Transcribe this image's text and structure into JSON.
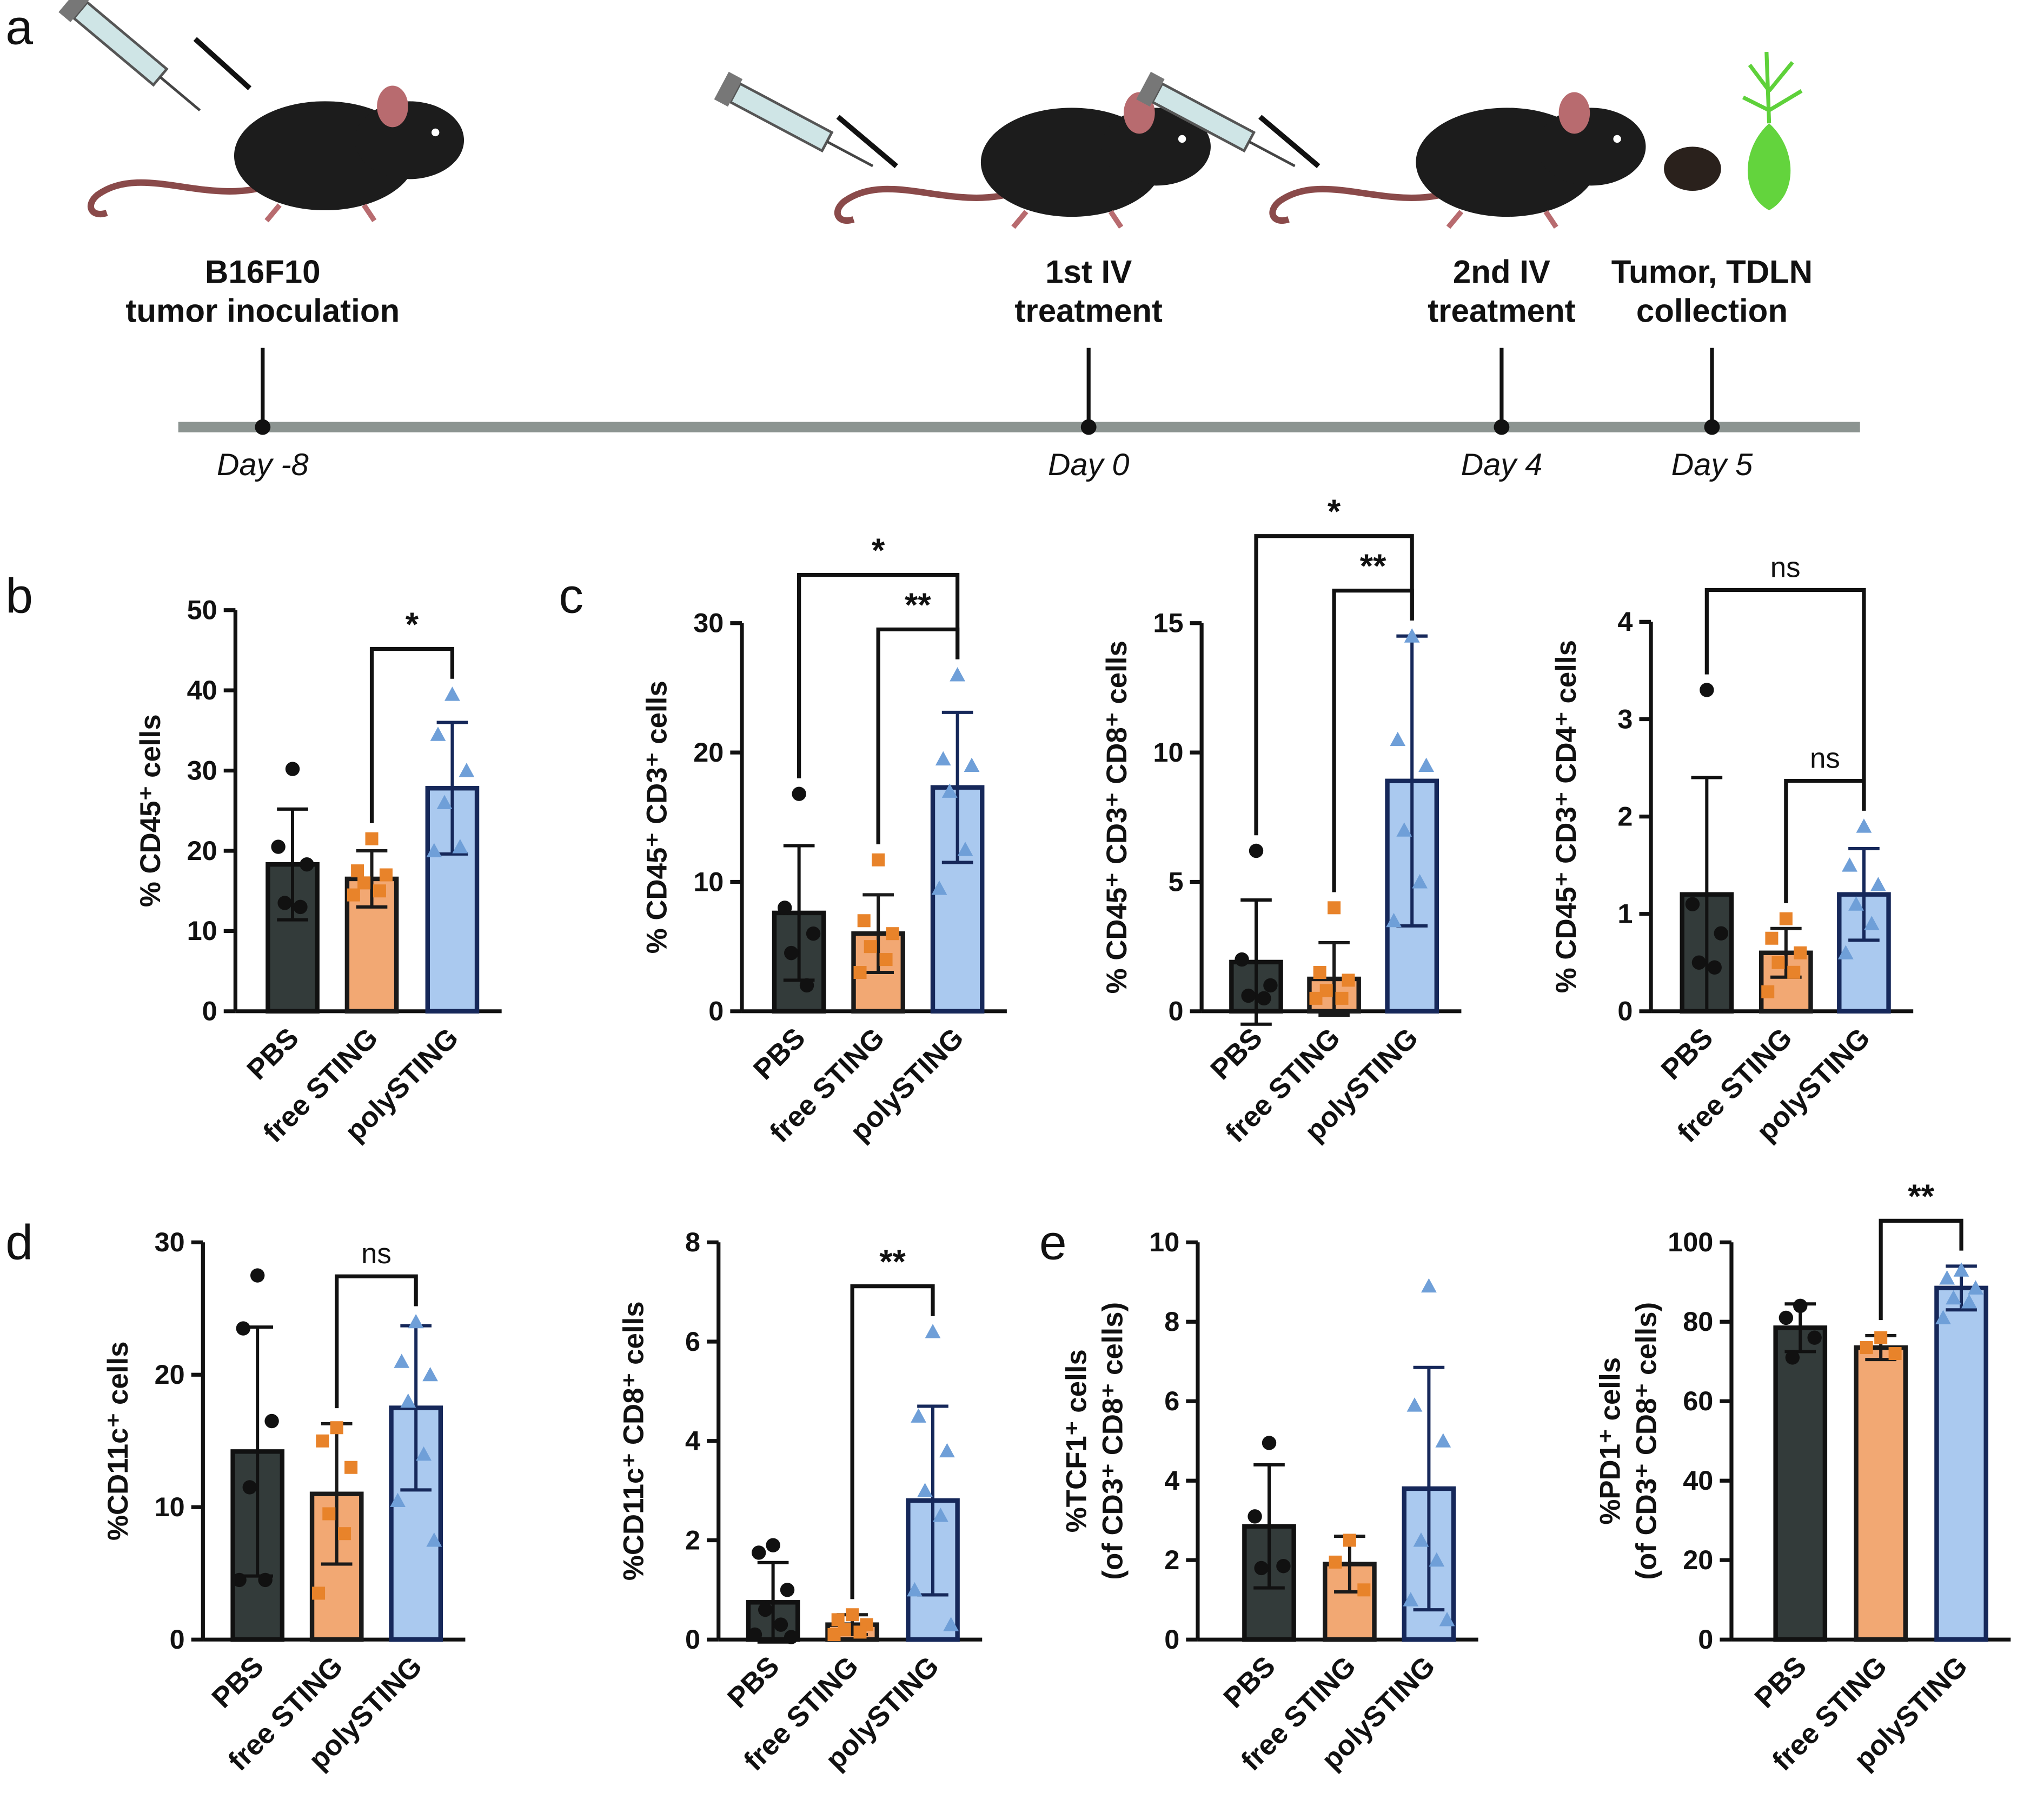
{
  "panel_labels": [
    "a",
    "b",
    "c",
    "d",
    "e"
  ],
  "timeline": {
    "events": [
      {
        "label": [
          "B16F10",
          "tumor inoculation"
        ],
        "day": "Day -8"
      },
      {
        "label": [
          "1st IV",
          "treatment"
        ],
        "day": "Day 0"
      },
      {
        "label": [
          "2nd IV",
          "treatment"
        ],
        "day": "Day 4"
      },
      {
        "label": [
          "Tumor, TDLN",
          "collection"
        ],
        "day": "Day 5"
      }
    ]
  },
  "chart_data": [
    {
      "type": "bar",
      "ylabel": [
        "% CD45⁺ cells"
      ],
      "categories": [
        "PBS",
        "free STING",
        "polySTING"
      ],
      "values": [
        18.3,
        16.5,
        27.8
      ],
      "errors": [
        6.9,
        3.5,
        8.2
      ],
      "points": [
        [
          30.2,
          20.5,
          18.3,
          13.5,
          13.0
        ],
        [
          21.5,
          17.5,
          17,
          16,
          15,
          14.5
        ],
        [
          39.5,
          34.5,
          30,
          26,
          20.5,
          20
        ]
      ],
      "colors": [
        "#333b3a",
        "#f2a873",
        "#aac9ef"
      ],
      "edge_colors": [
        "#111111",
        "#1a1a1a",
        "#16285a"
      ],
      "point_colors": [
        "#111111",
        "#e8832a",
        "#6f9fd8"
      ],
      "markers": [
        "circle",
        "square",
        "triangle"
      ],
      "ylim": [
        0,
        50
      ],
      "yticks": [
        0,
        10,
        20,
        30,
        40,
        50
      ],
      "brackets": [
        {
          "groups": [
            "free STING",
            "polySTING"
          ],
          "label": "*"
        }
      ]
    },
    {
      "type": "bar",
      "ylabel": [
        "% CD45⁺ CD3⁺ cells"
      ],
      "categories": [
        "PBS",
        "free STING",
        "polySTING"
      ],
      "values": [
        7.6,
        6.0,
        17.3
      ],
      "errors": [
        5.2,
        3.0,
        5.8
      ],
      "points": [
        [
          16.8,
          8,
          6,
          4.5,
          2
        ],
        [
          11.7,
          7,
          6,
          5,
          4,
          3
        ],
        [
          26,
          19.5,
          19,
          17,
          12.5,
          9.5
        ]
      ],
      "colors": [
        "#333b3a",
        "#f2a873",
        "#aac9ef"
      ],
      "edge_colors": [
        "#111111",
        "#1a1a1a",
        "#16285a"
      ],
      "point_colors": [
        "#111111",
        "#e8832a",
        "#6f9fd8"
      ],
      "markers": [
        "circle",
        "square",
        "triangle"
      ],
      "ylim": [
        0,
        30
      ],
      "yticks": [
        0,
        10,
        20,
        30
      ],
      "brackets": [
        {
          "groups": [
            "free STING",
            "polySTING"
          ],
          "label": "**"
        },
        {
          "groups": [
            "PBS",
            "polySTING"
          ],
          "label": "*"
        }
      ]
    },
    {
      "type": "bar",
      "ylabel": [
        "% CD45⁺ CD3⁺ CD8⁺ cells"
      ],
      "categories": [
        "PBS",
        "free STING",
        "polySTING"
      ],
      "values": [
        1.9,
        1.25,
        8.9
      ],
      "errors": [
        2.4,
        1.4,
        5.6
      ],
      "points": [
        [
          6.2,
          2,
          1,
          0.6,
          0.5
        ],
        [
          4,
          1.5,
          1.2,
          0.8,
          0.5,
          0.5
        ],
        [
          14.5,
          10.5,
          9.5,
          7,
          5,
          3.5
        ]
      ],
      "colors": [
        "#333b3a",
        "#f2a873",
        "#aac9ef"
      ],
      "edge_colors": [
        "#111111",
        "#1a1a1a",
        "#16285a"
      ],
      "point_colors": [
        "#111111",
        "#e8832a",
        "#6f9fd8"
      ],
      "markers": [
        "circle",
        "square",
        "triangle"
      ],
      "ylim": [
        0,
        15
      ],
      "yticks": [
        0,
        5,
        10,
        15
      ],
      "brackets": [
        {
          "groups": [
            "free STING",
            "polySTING"
          ],
          "label": "**"
        },
        {
          "groups": [
            "PBS",
            "polySTING"
          ],
          "label": "*"
        }
      ]
    },
    {
      "type": "bar",
      "ylabel": [
        "% CD45⁺ CD3⁺ CD4⁺ cells"
      ],
      "categories": [
        "PBS",
        "free STING",
        "polySTING"
      ],
      "values": [
        1.2,
        0.6,
        1.2
      ],
      "errors": [
        1.2,
        0.25,
        0.47
      ],
      "points": [
        [
          3.3,
          1.1,
          0.8,
          0.5,
          0.45
        ],
        [
          0.95,
          0.75,
          0.6,
          0.5,
          0.4,
          0.2
        ],
        [
          1.9,
          1.5,
          1.3,
          1.1,
          0.9,
          0.6
        ]
      ],
      "colors": [
        "#333b3a",
        "#f2a873",
        "#aac9ef"
      ],
      "edge_colors": [
        "#111111",
        "#1a1a1a",
        "#16285a"
      ],
      "point_colors": [
        "#111111",
        "#e8832a",
        "#6f9fd8"
      ],
      "markers": [
        "circle",
        "square",
        "triangle"
      ],
      "ylim": [
        0,
        4
      ],
      "yticks": [
        0,
        1,
        2,
        3,
        4
      ],
      "brackets": [
        {
          "groups": [
            "free STING",
            "polySTING"
          ],
          "label": "ns"
        },
        {
          "groups": [
            "PBS",
            "polySTING"
          ],
          "label": "ns"
        }
      ]
    },
    {
      "type": "bar",
      "ylabel": [
        "%CD11c⁺ cells"
      ],
      "categories": [
        "PBS",
        "free STING",
        "polySTING"
      ],
      "values": [
        14.2,
        11.0,
        17.5
      ],
      "errors": [
        9.4,
        5.3,
        6.2
      ],
      "points": [
        [
          27.5,
          23.5,
          16.5,
          11.5,
          4.5,
          4.5
        ],
        [
          16,
          15,
          13,
          9.5,
          8,
          3.5
        ],
        [
          24,
          21,
          20,
          18,
          14,
          10.5,
          7.5
        ]
      ],
      "colors": [
        "#333b3a",
        "#f2a873",
        "#aac9ef"
      ],
      "edge_colors": [
        "#111111",
        "#1a1a1a",
        "#16285a"
      ],
      "point_colors": [
        "#111111",
        "#e8832a",
        "#6f9fd8"
      ],
      "markers": [
        "circle",
        "square",
        "triangle"
      ],
      "ylim": [
        0,
        30
      ],
      "yticks": [
        0,
        10,
        20,
        30
      ],
      "brackets": [
        {
          "groups": [
            "free STING",
            "polySTING"
          ],
          "label": "ns"
        }
      ]
    },
    {
      "type": "bar",
      "ylabel": [
        "%CD11c⁺ CD8⁺ cells"
      ],
      "categories": [
        "PBS",
        "free STING",
        "polySTING"
      ],
      "values": [
        0.75,
        0.3,
        2.8
      ],
      "errors": [
        0.8,
        0.2,
        1.9
      ],
      "points": [
        [
          1.9,
          1.75,
          1.0,
          0.6,
          0.3,
          0.1,
          0.05
        ],
        [
          0.5,
          0.4,
          0.3,
          0.2,
          0.15,
          0.1
        ],
        [
          6.2,
          4.5,
          3.8,
          3.0,
          2.5,
          1.0,
          0.3
        ]
      ],
      "colors": [
        "#333b3a",
        "#f2a873",
        "#aac9ef"
      ],
      "edge_colors": [
        "#111111",
        "#1a1a1a",
        "#16285a"
      ],
      "point_colors": [
        "#111111",
        "#e8832a",
        "#6f9fd8"
      ],
      "markers": [
        "circle",
        "square",
        "triangle"
      ],
      "ylim": [
        0,
        8
      ],
      "yticks": [
        0,
        2,
        4,
        6,
        8
      ],
      "brackets": [
        {
          "groups": [
            "free STING",
            "polySTING"
          ],
          "label": "**"
        }
      ]
    },
    {
      "type": "bar",
      "ylabel": [
        "%TCF1⁺ cells",
        "(of CD3⁺ CD8⁺ cells)"
      ],
      "categories": [
        "PBS",
        "free STING",
        "polySTING"
      ],
      "values": [
        2.85,
        1.9,
        3.8
      ],
      "errors": [
        1.55,
        0.7,
        3.05
      ],
      "points": [
        [
          4.95,
          3.1,
          1.85,
          1.8
        ],
        [
          2.5,
          1.95,
          1.25
        ],
        [
          8.9,
          5.9,
          5.0,
          2.5,
          2.0,
          1.0,
          0.5
        ]
      ],
      "colors": [
        "#333b3a",
        "#f2a873",
        "#aac9ef"
      ],
      "edge_colors": [
        "#111111",
        "#1a1a1a",
        "#16285a"
      ],
      "point_colors": [
        "#111111",
        "#e8832a",
        "#6f9fd8"
      ],
      "markers": [
        "circle",
        "square",
        "triangle"
      ],
      "ylim": [
        0,
        10
      ],
      "yticks": [
        0,
        2,
        4,
        6,
        8,
        10
      ],
      "brackets": []
    },
    {
      "type": "bar",
      "ylabel": [
        "%PD1⁺ cells",
        "(of CD3⁺ CD8⁺ cells)"
      ],
      "categories": [
        "PBS",
        "free STING",
        "polySTING"
      ],
      "values": [
        78.5,
        73.5,
        88.5
      ],
      "errors": [
        6,
        3,
        5.5
      ],
      "points": [
        [
          84,
          81,
          76,
          71
        ],
        [
          76,
          73.5,
          72
        ],
        [
          93,
          91,
          88.5,
          86,
          85,
          81
        ]
      ],
      "colors": [
        "#333b3a",
        "#f2a873",
        "#aac9ef"
      ],
      "edge_colors": [
        "#111111",
        "#1a1a1a",
        "#16285a"
      ],
      "point_colors": [
        "#111111",
        "#e8832a",
        "#6f9fd8"
      ],
      "markers": [
        "circle",
        "square",
        "triangle"
      ],
      "ylim": [
        0,
        100
      ],
      "yticks": [
        0,
        20,
        40,
        60,
        80,
        100
      ],
      "brackets": [
        {
          "groups": [
            "free STING",
            "polySTING"
          ],
          "label": "**"
        }
      ]
    }
  ]
}
